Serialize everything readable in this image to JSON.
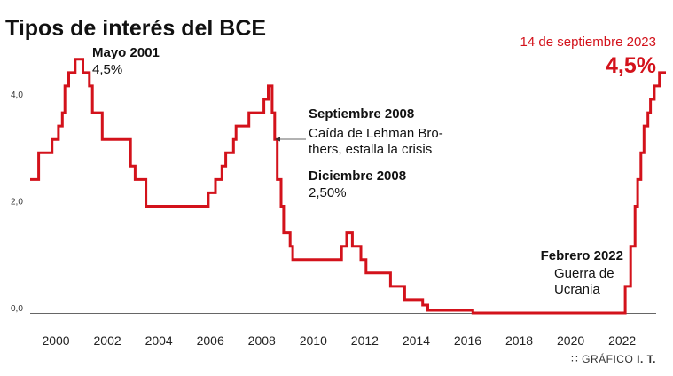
{
  "chart_data": {
    "type": "line",
    "title": "Tipos de interés del BCE",
    "xlabel": "",
    "ylabel": "",
    "xlim": [
      1999,
      2023.7
    ],
    "ylim": [
      0,
      5
    ],
    "yticks": [
      {
        "value": 0,
        "label": "0,0"
      },
      {
        "value": 2,
        "label": "2,0"
      },
      {
        "value": 4,
        "label": "4,0"
      }
    ],
    "xticks": [
      2000,
      2002,
      2004,
      2006,
      2008,
      2010,
      2012,
      2014,
      2016,
      2018,
      2020,
      2022
    ],
    "grid": false,
    "line_color": "#d3121b",
    "series": [
      {
        "step": true,
        "x": [
          1999.0,
          1999.33,
          1999.85,
          2000.1,
          2000.25,
          2000.35,
          2000.5,
          2000.75,
          2001.05,
          2001.3,
          2001.42,
          2001.8,
          2002.9,
          2003.08,
          2003.5,
          2005.92,
          2006.2,
          2006.45,
          2006.6,
          2006.9,
          2007.0,
          2007.5,
          2008.08,
          2008.25,
          2008.4,
          2008.5,
          2008.6,
          2008.75,
          2008.85,
          2009.1,
          2009.2,
          2009.4,
          2011.1,
          2011.3,
          2011.52,
          2011.85,
          2012.05,
          2012.6,
          2013.0,
          2013.37,
          2013.55,
          2013.9,
          2014.25,
          2014.45,
          2014.7,
          2016.2,
          2022.12,
          2022.33,
          2022.5,
          2022.6,
          2022.73,
          2022.85,
          2023.0,
          2023.1,
          2023.25,
          2023.45,
          2023.7
        ],
        "y": [
          2.5,
          3.0,
          3.25,
          3.5,
          3.75,
          4.25,
          4.5,
          4.75,
          4.5,
          4.25,
          3.75,
          3.25,
          2.75,
          2.5,
          2.0,
          2.25,
          2.5,
          2.75,
          3.0,
          3.25,
          3.5,
          3.75,
          4.0,
          4.25,
          3.75,
          3.25,
          2.5,
          2.0,
          1.5,
          1.25,
          1.0,
          1.0,
          1.25,
          1.5,
          1.25,
          1.0,
          0.75,
          0.75,
          0.5,
          0.5,
          0.25,
          0.25,
          0.15,
          0.05,
          0.05,
          0.0,
          0.5,
          1.25,
          2.0,
          2.5,
          3.0,
          3.5,
          3.75,
          4.0,
          4.25,
          4.5,
          4.5
        ]
      }
    ],
    "annotations": [
      {
        "id": "may2001",
        "x": 2001.0,
        "y": 4.75,
        "title": "Mayo 2001",
        "text": [
          "4,5%"
        ]
      },
      {
        "id": "sep2008",
        "x": 2008.5,
        "y": 3.25,
        "title": "Septiembre 2008",
        "text": [
          "Caída de Lehman Bro-",
          "thers, estalla la crisis"
        ]
      },
      {
        "id": "dec2008",
        "x": 2009.0,
        "y": 2.5,
        "title": "Diciembre 2008",
        "text": [
          "2,50%"
        ]
      },
      {
        "id": "feb2022",
        "x": 2022.12,
        "y": 0.0,
        "title": "Febrero 2022",
        "text": [
          "Guerra de",
          "Ucrania"
        ]
      }
    ],
    "highlight": {
      "date": "14 de septiembre 2023",
      "value": "4,5%"
    }
  },
  "credit": {
    "prefix": "∷ GRÁFICO ",
    "author": "I. T."
  }
}
